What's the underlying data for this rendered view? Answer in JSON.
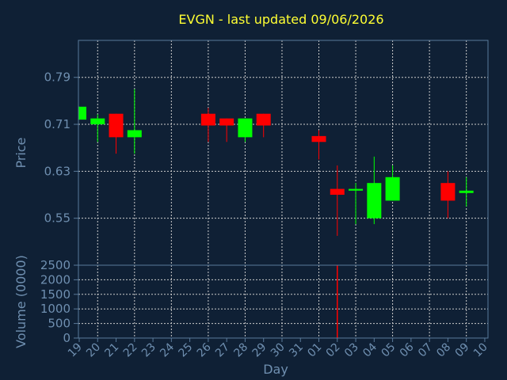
{
  "chart_data": {
    "type": "candlestick",
    "title": "EVGN - last updated 09/06/2026",
    "xlabel": "Day",
    "x": [
      "19",
      "20",
      "21",
      "22",
      "23",
      "24",
      "25",
      "26",
      "27",
      "28",
      "29",
      "30",
      "31",
      "01",
      "02",
      "03",
      "04",
      "05",
      "06",
      "07",
      "08",
      "09",
      "10"
    ],
    "price_panel": {
      "ylabel": "Price",
      "yticks": [
        "0.79",
        "0.71",
        "0.63",
        "0.55"
      ],
      "ylim": [
        0.47,
        0.853
      ],
      "grid": true
    },
    "volume_panel": {
      "ylabel": "Volume (0000)",
      "yticks": [
        "2500",
        "2000",
        "1500",
        "1000",
        "500",
        "0"
      ],
      "ylim": [
        0,
        2500
      ],
      "grid": true
    },
    "candles": [
      {
        "day": "19",
        "open": 0.718,
        "close": 0.74,
        "high": 0.74,
        "low": 0.718,
        "volume": 0
      },
      {
        "day": "20",
        "open": 0.71,
        "close": 0.72,
        "high": 0.727,
        "low": 0.68,
        "volume": 0
      },
      {
        "day": "21",
        "open": 0.728,
        "close": 0.688,
        "high": 0.728,
        "low": 0.66,
        "volume": 0
      },
      {
        "day": "22",
        "open": 0.688,
        "close": 0.7,
        "high": 0.77,
        "low": 0.66,
        "volume": 0
      },
      {
        "day": "26",
        "open": 0.728,
        "close": 0.708,
        "high": 0.738,
        "low": 0.68,
        "volume": 0
      },
      {
        "day": "27",
        "open": 0.72,
        "close": 0.708,
        "high": 0.72,
        "low": 0.68,
        "volume": 0
      },
      {
        "day": "28",
        "open": 0.688,
        "close": 0.72,
        "high": 0.72,
        "low": 0.68,
        "volume": 0
      },
      {
        "day": "29",
        "open": 0.728,
        "close": 0.708,
        "high": 0.728,
        "low": 0.688,
        "volume": 0
      },
      {
        "day": "01",
        "open": 0.69,
        "close": 0.68,
        "high": 0.7,
        "low": 0.65,
        "volume": 0
      },
      {
        "day": "02",
        "open": 0.6,
        "close": 0.59,
        "high": 0.64,
        "low": 0.52,
        "volume": 2500
      },
      {
        "day": "03",
        "open": 0.597,
        "close": 0.6,
        "high": 0.61,
        "low": 0.54,
        "volume": 0
      },
      {
        "day": "04",
        "open": 0.55,
        "close": 0.61,
        "high": 0.655,
        "low": 0.54,
        "volume": 0
      },
      {
        "day": "05",
        "open": 0.58,
        "close": 0.62,
        "high": 0.64,
        "low": 0.58,
        "volume": 0
      },
      {
        "day": "08",
        "open": 0.61,
        "close": 0.58,
        "high": 0.63,
        "low": 0.55,
        "volume": 0
      },
      {
        "day": "09",
        "open": 0.593,
        "close": 0.597,
        "high": 0.62,
        "low": 0.57,
        "volume": 0
      }
    ]
  },
  "colors": {
    "background": "#0f2035",
    "plot_background": "#0f2035",
    "up": "#00ff00",
    "down": "#ff0000",
    "frame": "#5a7a9a",
    "grid": "#cccccc",
    "title": "#ffff33",
    "axis_text": "#6f8fb0"
  }
}
